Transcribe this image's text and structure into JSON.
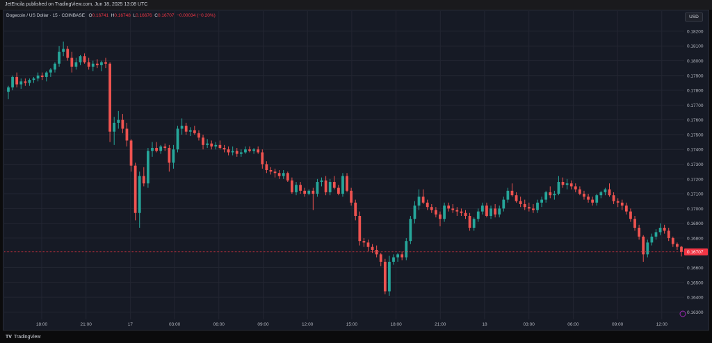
{
  "header": {
    "published_text": "JetEncila published on TradingView.com, Jun 18, 2025 13:08 UTC"
  },
  "legend": {
    "symbol": "Dogecoin / US Dollar · 15 · COINBASE",
    "open_label": "O",
    "open": "0.16741",
    "high_label": "H",
    "high": "0.16748",
    "low_label": "L",
    "low": "0.16676",
    "close_label": "C",
    "close": "0.16707",
    "change": "−0.00034 (−0.20%)"
  },
  "currency_button": "USD",
  "footer": {
    "logo": "TV",
    "brand": "TradingView"
  },
  "colors": {
    "background": "#161a25",
    "grid": "#232632",
    "up": "#26a69a",
    "down": "#ef5350",
    "last_price_line": "#f23645",
    "axis_text": "#b2b5be"
  },
  "chart_data": {
    "type": "candlestick",
    "title": "Dogecoin / US Dollar · 15 · COINBASE",
    "ylim": [
      0.1625,
      0.1827
    ],
    "y_ticks": [
      "0.18200",
      "0.18100",
      "0.18000",
      "0.17900",
      "0.17800",
      "0.17700",
      "0.17600",
      "0.17500",
      "0.17400",
      "0.17300",
      "0.17200",
      "0.17100",
      "0.17000",
      "0.16900",
      "0.16800",
      "0.16600",
      "0.16500",
      "0.16400",
      "0.16300"
    ],
    "x_ticks": [
      "18:00",
      "21:00",
      "17",
      "03:00",
      "06:00",
      "09:00",
      "12:00",
      "15:00",
      "18:00",
      "21:00",
      "18",
      "03:00",
      "06:00",
      "09:00",
      "12:00"
    ],
    "last_price": "0.16707",
    "grid": true,
    "candles": [
      [
        0.1779,
        0.1783,
        0.1774,
        0.1782
      ],
      [
        0.1782,
        0.179,
        0.178,
        0.1789
      ],
      [
        0.1789,
        0.1792,
        0.1782,
        0.1784
      ],
      [
        0.1784,
        0.1788,
        0.1781,
        0.1786
      ],
      [
        0.1786,
        0.1788,
        0.1783,
        0.1785
      ],
      [
        0.1785,
        0.1788,
        0.1783,
        0.1787
      ],
      [
        0.1787,
        0.1789,
        0.1785,
        0.1788
      ],
      [
        0.1788,
        0.1792,
        0.1786,
        0.179
      ],
      [
        0.179,
        0.1792,
        0.1787,
        0.1789
      ],
      [
        0.1789,
        0.1793,
        0.1786,
        0.1792
      ],
      [
        0.1792,
        0.1795,
        0.1789,
        0.1794
      ],
      [
        0.1794,
        0.1799,
        0.1792,
        0.1798
      ],
      [
        0.1798,
        0.181,
        0.1796,
        0.1806
      ],
      [
        0.1806,
        0.1813,
        0.1803,
        0.1808
      ],
      [
        0.1808,
        0.181,
        0.18,
        0.1802
      ],
      [
        0.1802,
        0.1806,
        0.1792,
        0.1796
      ],
      [
        0.1796,
        0.1802,
        0.1794,
        0.1799
      ],
      [
        0.1799,
        0.1804,
        0.1797,
        0.1803
      ],
      [
        0.1803,
        0.1805,
        0.1798,
        0.1799
      ],
      [
        0.1799,
        0.1802,
        0.1794,
        0.1796
      ],
      [
        0.1796,
        0.18,
        0.1793,
        0.1798
      ],
      [
        0.1798,
        0.1801,
        0.1795,
        0.1797
      ],
      [
        0.1797,
        0.18,
        0.1793,
        0.1799
      ],
      [
        0.1799,
        0.1802,
        0.1795,
        0.1798
      ],
      [
        0.1798,
        0.1799,
        0.1745,
        0.1752
      ],
      [
        0.1752,
        0.1762,
        0.1743,
        0.1758
      ],
      [
        0.1758,
        0.1766,
        0.1754,
        0.176
      ],
      [
        0.176,
        0.1764,
        0.1751,
        0.1754
      ],
      [
        0.1754,
        0.1758,
        0.1742,
        0.1746
      ],
      [
        0.1746,
        0.1747,
        0.1725,
        0.1729
      ],
      [
        0.1729,
        0.1731,
        0.1692,
        0.1697
      ],
      [
        0.1697,
        0.1725,
        0.1687,
        0.1722
      ],
      [
        0.1722,
        0.1728,
        0.1715,
        0.1717
      ],
      [
        0.1717,
        0.1741,
        0.1714,
        0.1739
      ],
      [
        0.1739,
        0.1745,
        0.1735,
        0.1741
      ],
      [
        0.1741,
        0.1745,
        0.1738,
        0.1739
      ],
      [
        0.1739,
        0.1743,
        0.1737,
        0.1742
      ],
      [
        0.1742,
        0.1744,
        0.1739,
        0.1741
      ],
      [
        0.1741,
        0.1743,
        0.1725,
        0.1731
      ],
      [
        0.1731,
        0.1743,
        0.1727,
        0.174
      ],
      [
        0.174,
        0.1756,
        0.1738,
        0.1754
      ],
      [
        0.1754,
        0.1761,
        0.175,
        0.1756
      ],
      [
        0.1756,
        0.1758,
        0.175,
        0.1752
      ],
      [
        0.1752,
        0.1755,
        0.1749,
        0.1753
      ],
      [
        0.1753,
        0.1756,
        0.175,
        0.1751
      ],
      [
        0.1751,
        0.1753,
        0.1746,
        0.1748
      ],
      [
        0.1748,
        0.175,
        0.174,
        0.1743
      ],
      [
        0.1743,
        0.1747,
        0.1741,
        0.1744
      ],
      [
        0.1744,
        0.1746,
        0.174,
        0.1742
      ],
      [
        0.1742,
        0.1745,
        0.174,
        0.1743
      ],
      [
        0.1743,
        0.1746,
        0.174,
        0.1741
      ],
      [
        0.1741,
        0.1743,
        0.1738,
        0.174
      ],
      [
        0.174,
        0.1742,
        0.1736,
        0.1738
      ],
      [
        0.1738,
        0.1742,
        0.1736,
        0.1739
      ],
      [
        0.1739,
        0.1741,
        0.1735,
        0.1737
      ],
      [
        0.1737,
        0.174,
        0.1735,
        0.1738
      ],
      [
        0.1738,
        0.1742,
        0.1737,
        0.174
      ],
      [
        0.174,
        0.1742,
        0.1738,
        0.1739
      ],
      [
        0.1739,
        0.1741,
        0.1737,
        0.174
      ],
      [
        0.174,
        0.1742,
        0.1737,
        0.1738
      ],
      [
        0.1738,
        0.174,
        0.1727,
        0.173
      ],
      [
        0.173,
        0.1732,
        0.1724,
        0.1726
      ],
      [
        0.1726,
        0.1728,
        0.1723,
        0.1725
      ],
      [
        0.1725,
        0.1727,
        0.1721,
        0.1724
      ],
      [
        0.1724,
        0.1726,
        0.172,
        0.1722
      ],
      [
        0.1722,
        0.1726,
        0.172,
        0.1724
      ],
      [
        0.1724,
        0.1725,
        0.1718,
        0.1719
      ],
      [
        0.1719,
        0.1721,
        0.171,
        0.1711
      ],
      [
        0.1711,
        0.1718,
        0.1709,
        0.1716
      ],
      [
        0.1716,
        0.1718,
        0.171,
        0.1712
      ],
      [
        0.1712,
        0.1714,
        0.1708,
        0.171
      ],
      [
        0.171,
        0.1713,
        0.1709,
        0.1712
      ],
      [
        0.1712,
        0.1714,
        0.1699,
        0.171
      ],
      [
        0.171,
        0.172,
        0.1708,
        0.1718
      ],
      [
        0.1718,
        0.1721,
        0.1715,
        0.1719
      ],
      [
        0.1719,
        0.1722,
        0.1709,
        0.1711
      ],
      [
        0.1711,
        0.172,
        0.1709,
        0.1718
      ],
      [
        0.1718,
        0.1722,
        0.1713,
        0.1714
      ],
      [
        0.1714,
        0.1716,
        0.1709,
        0.171
      ],
      [
        0.171,
        0.1724,
        0.1708,
        0.1722
      ],
      [
        0.1722,
        0.1724,
        0.1711,
        0.1712
      ],
      [
        0.1712,
        0.1714,
        0.1702,
        0.1704
      ],
      [
        0.1704,
        0.1706,
        0.1692,
        0.1695
      ],
      [
        0.1695,
        0.1698,
        0.1675,
        0.1678
      ],
      [
        0.1678,
        0.168,
        0.1674,
        0.1677
      ],
      [
        0.1677,
        0.1679,
        0.1671,
        0.1674
      ],
      [
        0.1674,
        0.1676,
        0.167,
        0.1672
      ],
      [
        0.1672,
        0.1675,
        0.1667,
        0.1669
      ],
      [
        0.1669,
        0.167,
        0.1661,
        0.1664
      ],
      [
        0.1664,
        0.1666,
        0.1642,
        0.1644
      ],
      [
        0.1644,
        0.1668,
        0.1641,
        0.1664
      ],
      [
        0.1664,
        0.1669,
        0.1662,
        0.1667
      ],
      [
        0.1667,
        0.167,
        0.1664,
        0.1669
      ],
      [
        0.1669,
        0.1671,
        0.1665,
        0.1667
      ],
      [
        0.1667,
        0.168,
        0.1665,
        0.1678
      ],
      [
        0.1678,
        0.1695,
        0.1676,
        0.1693
      ],
      [
        0.1693,
        0.1705,
        0.169,
        0.1702
      ],
      [
        0.1702,
        0.1713,
        0.1699,
        0.1708
      ],
      [
        0.1708,
        0.1713,
        0.1703,
        0.1704
      ],
      [
        0.1704,
        0.1706,
        0.1699,
        0.1701
      ],
      [
        0.1701,
        0.1703,
        0.1697,
        0.1699
      ],
      [
        0.1699,
        0.1701,
        0.1694,
        0.1696
      ],
      [
        0.1696,
        0.1698,
        0.1688,
        0.1693
      ],
      [
        0.1693,
        0.1704,
        0.1691,
        0.1702
      ],
      [
        0.1702,
        0.1704,
        0.1698,
        0.17
      ],
      [
        0.17,
        0.1703,
        0.1697,
        0.1699
      ],
      [
        0.1699,
        0.1701,
        0.1695,
        0.1698
      ],
      [
        0.1698,
        0.17,
        0.1695,
        0.1697
      ],
      [
        0.1697,
        0.1699,
        0.1693,
        0.1695
      ],
      [
        0.1695,
        0.1697,
        0.1685,
        0.1687
      ],
      [
        0.1687,
        0.1694,
        0.1685,
        0.1693
      ],
      [
        0.1693,
        0.17,
        0.1691,
        0.1698
      ],
      [
        0.1698,
        0.1704,
        0.1696,
        0.1702
      ],
      [
        0.1702,
        0.1704,
        0.1694,
        0.1695
      ],
      [
        0.1695,
        0.1702,
        0.1693,
        0.17
      ],
      [
        0.17,
        0.1703,
        0.1694,
        0.1696
      ],
      [
        0.1696,
        0.1702,
        0.1694,
        0.17
      ],
      [
        0.17,
        0.1708,
        0.1698,
        0.1706
      ],
      [
        0.1706,
        0.1714,
        0.1704,
        0.1712
      ],
      [
        0.1712,
        0.1717,
        0.1708,
        0.1709
      ],
      [
        0.1709,
        0.1711,
        0.1704,
        0.1705
      ],
      [
        0.1705,
        0.1708,
        0.1701,
        0.1703
      ],
      [
        0.1703,
        0.1706,
        0.1699,
        0.1701
      ],
      [
        0.1701,
        0.1704,
        0.1698,
        0.17
      ],
      [
        0.17,
        0.1703,
        0.1697,
        0.1699
      ],
      [
        0.1699,
        0.1706,
        0.1697,
        0.1704
      ],
      [
        0.1704,
        0.1708,
        0.1701,
        0.1706
      ],
      [
        0.1706,
        0.1712,
        0.1704,
        0.1711
      ],
      [
        0.1711,
        0.1715,
        0.1707,
        0.1709
      ],
      [
        0.1709,
        0.1712,
        0.1706,
        0.171
      ],
      [
        0.171,
        0.1722,
        0.1709,
        0.1718
      ],
      [
        0.1718,
        0.1721,
        0.1714,
        0.1716
      ],
      [
        0.1716,
        0.172,
        0.1713,
        0.1717
      ],
      [
        0.1717,
        0.1719,
        0.1713,
        0.1715
      ],
      [
        0.1715,
        0.1717,
        0.1711,
        0.1713
      ],
      [
        0.1713,
        0.1715,
        0.1709,
        0.171
      ],
      [
        0.171,
        0.1712,
        0.1706,
        0.1708
      ],
      [
        0.1708,
        0.171,
        0.1704,
        0.1706
      ],
      [
        0.1706,
        0.1708,
        0.1702,
        0.1704
      ],
      [
        0.1704,
        0.171,
        0.1702,
        0.1709
      ],
      [
        0.1709,
        0.1712,
        0.1707,
        0.1711
      ],
      [
        0.1711,
        0.1714,
        0.1709,
        0.1713
      ],
      [
        0.1713,
        0.1717,
        0.1708,
        0.1709
      ],
      [
        0.1709,
        0.1711,
        0.1703,
        0.1705
      ],
      [
        0.1705,
        0.1707,
        0.1701,
        0.1704
      ],
      [
        0.1704,
        0.1706,
        0.1699,
        0.1702
      ],
      [
        0.1702,
        0.1704,
        0.1696,
        0.1698
      ],
      [
        0.1698,
        0.17,
        0.1691,
        0.1693
      ],
      [
        0.1693,
        0.1695,
        0.1685,
        0.1687
      ],
      [
        0.1687,
        0.1689,
        0.1679,
        0.1681
      ],
      [
        0.1681,
        0.1682,
        0.1664,
        0.1669
      ],
      [
        0.1669,
        0.1679,
        0.1667,
        0.1677
      ],
      [
        0.1677,
        0.1683,
        0.1675,
        0.1681
      ],
      [
        0.1681,
        0.1686,
        0.1679,
        0.1684
      ],
      [
        0.1684,
        0.169,
        0.1682,
        0.1687
      ],
      [
        0.1687,
        0.1689,
        0.1683,
        0.1685
      ],
      [
        0.1685,
        0.1687,
        0.1678,
        0.168
      ],
      [
        0.168,
        0.1681,
        0.1674,
        0.1676
      ],
      [
        0.1676,
        0.1677,
        0.1672,
        0.16741
      ],
      [
        0.16741,
        0.16748,
        0.16676,
        0.16707
      ]
    ]
  }
}
